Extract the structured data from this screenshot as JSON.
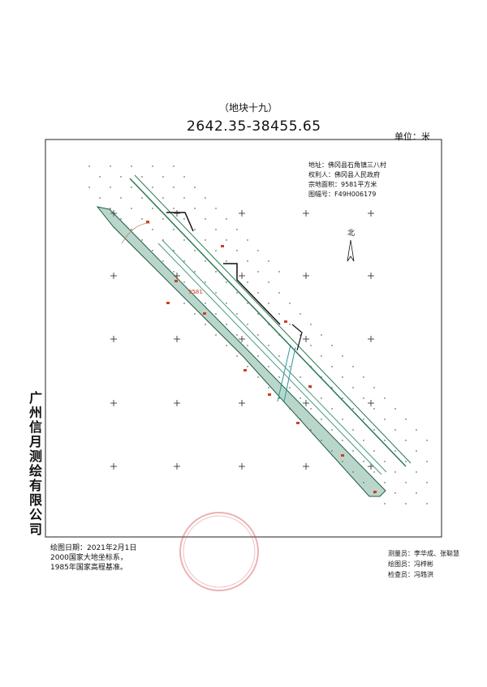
{
  "header": {
    "title": "（地块十九）",
    "code": "2642.35-38455.65",
    "unit": "单位：米"
  },
  "info": {
    "address": "地址：佛冈县石角镇三八村",
    "owner": "权利人：佛冈县人民政府",
    "area": "宗地面积：9581平方米",
    "sheet": "图幅号：F49H006179"
  },
  "map": {
    "north": "北",
    "parcel_label": "9581"
  },
  "company": "广州信月测绘有限公司",
  "footer_left": {
    "date": "绘图日期：2021年2月1日",
    "crs": "2000国家大地坐标系，",
    "height": "1985年国家高程基准。"
  },
  "footer_right": {
    "surveyor": "测量员：李华成、张聪慧",
    "drafter": "绘图员：冯梓彬",
    "checker": "检查员：冯韪洪"
  }
}
